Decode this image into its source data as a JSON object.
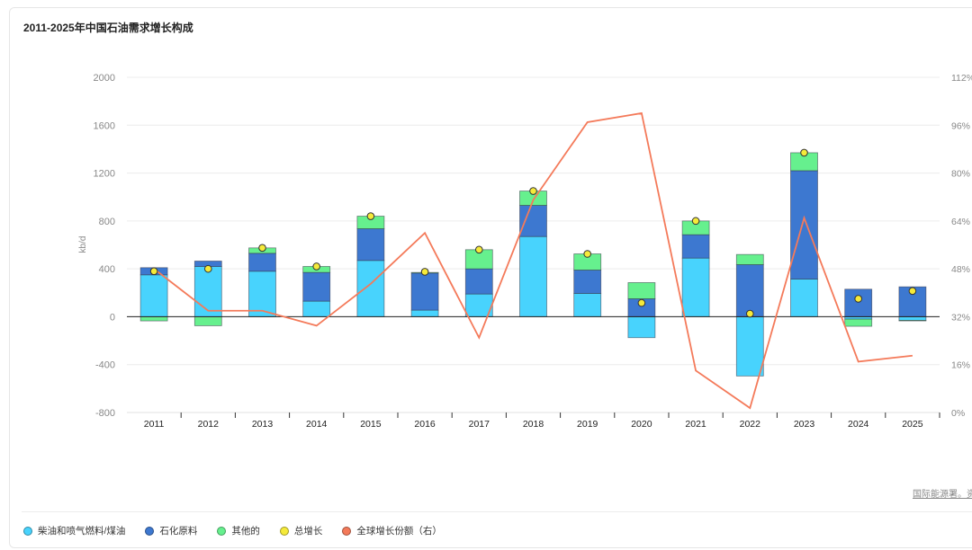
{
  "chart_data": {
    "type": "bar",
    "title": "2011-2025年中国石油需求增长构成",
    "ylabel": "kb/d",
    "ylim": [
      -800,
      2000
    ],
    "yticks": [
      "2000",
      "1600",
      "1200",
      "800",
      "400",
      "0",
      "-400",
      "-800"
    ],
    "y2lim": [
      0,
      112
    ],
    "y2ticks": [
      "112%",
      "96%",
      "80%",
      "64%",
      "48%",
      "32%",
      "16%",
      "0%"
    ],
    "categories": [
      "2011",
      "2012",
      "2013",
      "2014",
      "2015",
      "2016",
      "2017",
      "2018",
      "2019",
      "2020",
      "2021",
      "2022",
      "2023",
      "2024",
      "2025"
    ],
    "series": [
      {
        "name": "柴油和喷气燃料/煤油",
        "type": "bar",
        "color": "#48d3fd",
        "values": [
          350,
          420,
          380,
          130,
          470,
          55,
          190,
          670,
          195,
          -175,
          490,
          -495,
          315,
          -20,
          -30
        ]
      },
      {
        "name": "石化原料",
        "type": "bar",
        "color": "#3d78d0",
        "values": [
          60,
          45,
          150,
          240,
          265,
          310,
          210,
          260,
          195,
          150,
          195,
          435,
          905,
          230,
          250
        ]
      },
      {
        "name": "其他的",
        "type": "bar",
        "color": "#66f08e",
        "values": [
          -35,
          -75,
          45,
          50,
          105,
          5,
          160,
          120,
          135,
          135,
          115,
          85,
          150,
          -60,
          -5
        ]
      },
      {
        "name": "总增长",
        "type": "scatter",
        "color": "#f5ea3a",
        "values": [
          380,
          400,
          575,
          420,
          840,
          375,
          560,
          1050,
          525,
          115,
          800,
          25,
          1370,
          150,
          215
        ]
      },
      {
        "name": "全球增长份额（右）",
        "type": "line",
        "axis": "right",
        "color": "#f47a5a",
        "values": [
          48,
          34,
          34,
          29,
          43,
          60,
          25,
          71,
          97,
          100,
          14,
          1.5,
          65,
          17,
          19
        ]
      }
    ],
    "legend_position": "bottom-left",
    "grid": true
  },
  "source": "国际能源署。资"
}
